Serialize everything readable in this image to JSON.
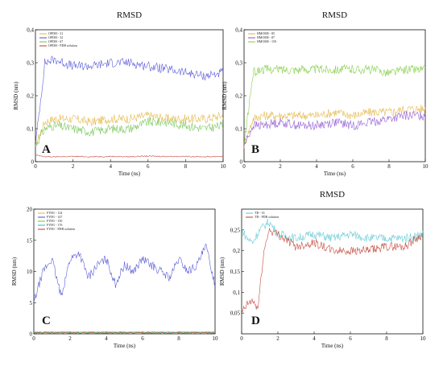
{
  "chart_data": [
    {
      "panel": "A",
      "type": "line",
      "title": "RMSD",
      "xlabel": "Time (ns)",
      "ylabel": "RMSD (nm)",
      "xlim": [
        0,
        10
      ],
      "ylim": [
        0,
        0.4
      ],
      "xticks": [
        "0",
        "2",
        "4",
        "6",
        "8",
        "10"
      ],
      "yticks": [
        "0",
        "0,1",
        "0,2",
        "0,3",
        "0,4"
      ],
      "legend_position": "top-left",
      "series": [
        {
          "name": "OPDH - 31",
          "color": "#e3b23c",
          "x": [
            0,
            0.5,
            1,
            2,
            3,
            4,
            5,
            6,
            7,
            8,
            9,
            10
          ],
          "y": [
            0.05,
            0.12,
            0.13,
            0.13,
            0.12,
            0.13,
            0.13,
            0.14,
            0.13,
            0.13,
            0.13,
            0.14
          ]
        },
        {
          "name": "OPDH - 32",
          "color": "#4b4bd6",
          "x": [
            0,
            0.5,
            1,
            2,
            3,
            4,
            5,
            6,
            7,
            8,
            9,
            10
          ],
          "y": [
            0.05,
            0.3,
            0.31,
            0.29,
            0.29,
            0.3,
            0.3,
            0.29,
            0.28,
            0.27,
            0.26,
            0.27
          ]
        },
        {
          "name": "OPDH - 67",
          "color": "#6cc24a",
          "x": [
            0,
            0.5,
            1,
            2,
            3,
            4,
            5,
            6,
            7,
            8,
            9,
            10
          ],
          "y": [
            0.05,
            0.1,
            0.11,
            0.1,
            0.09,
            0.1,
            0.1,
            0.12,
            0.12,
            0.11,
            0.1,
            0.11
          ]
        },
        {
          "name": "OPDH - PDB solution",
          "color": "#c0392b",
          "x": [
            0,
            0.5,
            1,
            2,
            3,
            4,
            5,
            6,
            7,
            8,
            9,
            10
          ],
          "y": [
            0.02,
            0.015,
            0.015,
            0.016,
            0.015,
            0.016,
            0.015,
            0.017,
            0.016,
            0.016,
            0.015,
            0.016
          ]
        }
      ]
    },
    {
      "panel": "B",
      "type": "line",
      "title": "RMSD",
      "xlabel": "Time (ns)",
      "ylabel": "RMSD (nm)",
      "xlim": [
        0,
        10
      ],
      "ylim": [
        0,
        0.4
      ],
      "xticks": [
        "0",
        "2",
        "4",
        "6",
        "8",
        "10"
      ],
      "yticks": [
        "0",
        "0,1",
        "0,2",
        "0,3",
        "0,4"
      ],
      "legend_position": "top-left",
      "series": [
        {
          "name": "HMOEH - 85",
          "color": "#e3b23c",
          "x": [
            0,
            0.5,
            1,
            2,
            3,
            4,
            5,
            6,
            7,
            8,
            9,
            10
          ],
          "y": [
            0.05,
            0.13,
            0.14,
            0.14,
            0.14,
            0.14,
            0.15,
            0.14,
            0.15,
            0.15,
            0.16,
            0.16
          ]
        },
        {
          "name": "HMOEH - 87",
          "color": "#8a4fd0",
          "x": [
            0,
            0.5,
            1,
            2,
            3,
            4,
            5,
            6,
            7,
            8,
            9,
            10
          ],
          "y": [
            0.05,
            0.11,
            0.11,
            0.12,
            0.11,
            0.11,
            0.12,
            0.11,
            0.12,
            0.13,
            0.14,
            0.14
          ]
        },
        {
          "name": "HMOEH - 159",
          "color": "#7ccb3a",
          "x": [
            0,
            0.5,
            1,
            2,
            3,
            4,
            5,
            6,
            7,
            8,
            9,
            10
          ],
          "y": [
            0.05,
            0.27,
            0.28,
            0.28,
            0.28,
            0.28,
            0.28,
            0.28,
            0.28,
            0.27,
            0.28,
            0.28
          ]
        }
      ]
    },
    {
      "panel": "C",
      "type": "line",
      "title": "",
      "xlabel": "Time (ns)",
      "ylabel": "RMSD (nm)",
      "xlim": [
        0,
        10
      ],
      "ylim": [
        0,
        20
      ],
      "xticks": [
        "0",
        "2",
        "4",
        "6",
        "8",
        "10"
      ],
      "yticks": [
        "0",
        "5",
        "10",
        "15",
        "20"
      ],
      "legend_position": "top-left",
      "series": [
        {
          "name": "FYH1 - 124",
          "color": "#e3b23c",
          "x": [
            0,
            2,
            4,
            6,
            8,
            10
          ],
          "y": [
            0.2,
            0.2,
            0.2,
            0.2,
            0.2,
            0.2
          ]
        },
        {
          "name": "FYH1 - 147",
          "color": "#4b4bd6",
          "x": [
            0,
            0.5,
            1,
            1.5,
            2,
            2.5,
            3,
            3.5,
            4,
            4.5,
            5,
            5.5,
            6,
            6.5,
            7,
            7.5,
            8,
            8.5,
            9,
            9.5,
            10
          ],
          "y": [
            5,
            10,
            12,
            6,
            12,
            13,
            9,
            11,
            12,
            8,
            11,
            10,
            12,
            11,
            10,
            9,
            12,
            10,
            11,
            14,
            8
          ]
        },
        {
          "name": "FYH1 - 150",
          "color": "#6cc24a",
          "x": [
            0,
            2,
            4,
            6,
            8,
            10
          ],
          "y": [
            0.3,
            0.3,
            0.3,
            0.3,
            0.3,
            0.3
          ]
        },
        {
          "name": "FYH1 - 176",
          "color": "#29b6c6",
          "x": [
            0,
            2,
            4,
            6,
            8,
            10
          ],
          "y": [
            0.25,
            0.25,
            0.25,
            0.25,
            0.25,
            0.25
          ]
        },
        {
          "name": "FYH1 - PDB solution",
          "color": "#c0392b",
          "x": [
            0,
            2,
            4,
            6,
            8,
            10
          ],
          "y": [
            0.15,
            0.15,
            0.15,
            0.15,
            0.15,
            0.15
          ]
        }
      ]
    },
    {
      "panel": "D",
      "type": "line",
      "title": "RMSD",
      "xlabel": "Time (ns)",
      "ylabel": "RMSD (nm)",
      "xlim": [
        0,
        10
      ],
      "ylim": [
        0,
        0.3
      ],
      "xticks": [
        "0",
        "2",
        "4",
        "6",
        "8",
        "10"
      ],
      "yticks": [
        "0,05",
        "0,1",
        "0,15",
        "0,2",
        "0,25"
      ],
      "legend_position": "top-left",
      "series": [
        {
          "name": "TR - 33",
          "color": "#5cc7d1",
          "x": [
            0,
            0.3,
            0.6,
            1,
            1.5,
            2,
            3,
            4,
            5,
            6,
            7,
            8,
            9,
            10
          ],
          "y": [
            0.25,
            0.23,
            0.22,
            0.25,
            0.27,
            0.24,
            0.23,
            0.24,
            0.23,
            0.24,
            0.23,
            0.23,
            0.23,
            0.24
          ]
        },
        {
          "name": "TR - PDB solution",
          "color": "#c0392b",
          "x": [
            0,
            0.3,
            0.6,
            0.9,
            1.2,
            1.5,
            2,
            3,
            4,
            5,
            6,
            7,
            8,
            9,
            10
          ],
          "y": [
            0.05,
            0.07,
            0.08,
            0.06,
            0.19,
            0.25,
            0.24,
            0.21,
            0.22,
            0.2,
            0.2,
            0.2,
            0.21,
            0.21,
            0.24
          ]
        }
      ]
    }
  ]
}
